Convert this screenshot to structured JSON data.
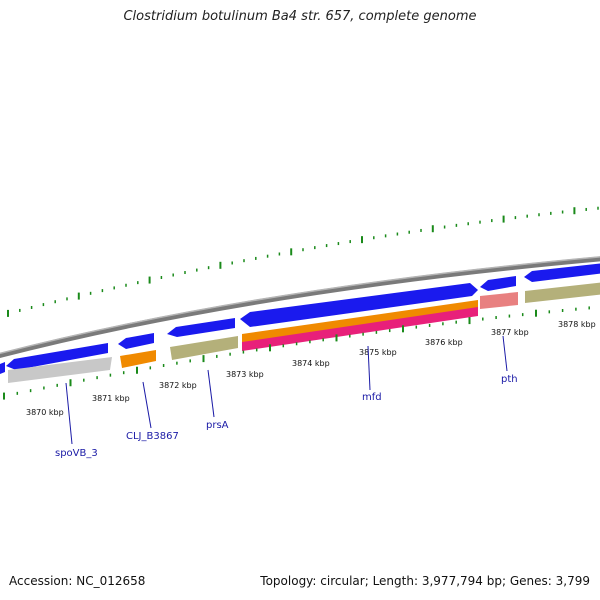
{
  "title": "Clostridium botulinum Ba4 str. 657, complete genome",
  "footer": {
    "accession_label": "Accession:",
    "accession": "NC_012658",
    "topology_label": "Topology:",
    "topology": "circular;",
    "length_label": "Length:",
    "length": "3,977,794 bp;",
    "genes_label": "Genes:",
    "genes": "3,799"
  },
  "colors": {
    "forward_cds": "#1a1aee",
    "reverse_cds": "#b4b07a",
    "orange": "#f08a00",
    "pink": "#e8207a",
    "salmon": "#e88080",
    "grey_feature": "#c8c8c8",
    "backbone": "#888888",
    "gc_skew": "#1a8a1a"
  },
  "tick_labels": [
    "3870 kbp",
    "3871 kbp",
    "3872 kbp",
    "3873 kbp",
    "3874 kbp",
    "3875 kbp",
    "3876 kbp",
    "3877 kbp",
    "3878 kbp"
  ],
  "gene_labels": [
    "spoVB_3",
    "CLJ_B3867",
    "prsA",
    "mfd",
    "pth"
  ]
}
